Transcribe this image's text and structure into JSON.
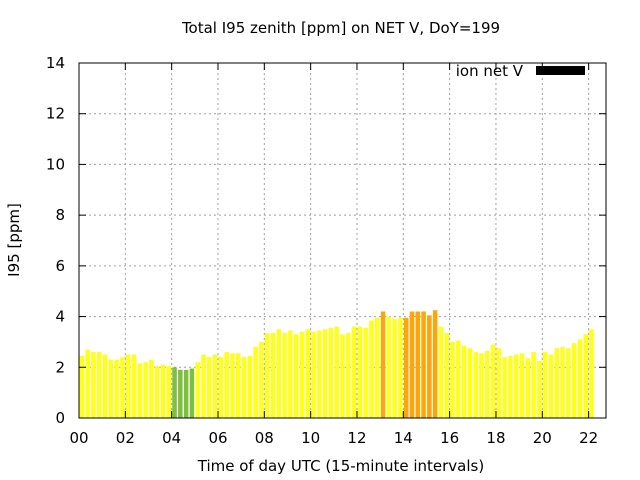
{
  "chart_data": {
    "type": "bar",
    "title": "Total I95 zenith [ppm] on NET V, DoY=199",
    "xlabel": "Time of day UTC (15-minute intervals)",
    "ylabel": "I95 [ppm]",
    "xlim": [
      0,
      22.75
    ],
    "ylim": [
      0,
      14
    ],
    "x_ticks": [
      "00",
      "02",
      "04",
      "06",
      "08",
      "10",
      "12",
      "14",
      "16",
      "18",
      "20",
      "22"
    ],
    "y_ticks": [
      "0",
      "2",
      "4",
      "6",
      "8",
      "10",
      "12",
      "14"
    ],
    "grid": true,
    "legend": {
      "label": "ion net V",
      "color": "#000000",
      "placement": "top-right"
    },
    "bar_interval_hours": 0.25,
    "colors": {
      "yellow": "#ffff1e",
      "green": "#7fbf3f",
      "orange": "#ffa50a"
    },
    "values": [
      2.45,
      2.7,
      2.6,
      2.6,
      2.5,
      2.3,
      2.3,
      2.4,
      2.5,
      2.5,
      2.15,
      2.2,
      2.3,
      2.05,
      2.1,
      2.05,
      2.0,
      1.9,
      1.9,
      1.95,
      2.2,
      2.5,
      2.4,
      2.5,
      2.4,
      2.6,
      2.55,
      2.55,
      2.4,
      2.45,
      2.8,
      3.0,
      3.35,
      3.35,
      3.5,
      3.35,
      3.45,
      3.3,
      3.4,
      3.5,
      3.4,
      3.45,
      3.5,
      3.55,
      3.6,
      3.3,
      3.35,
      3.6,
      3.6,
      3.55,
      3.85,
      3.95,
      4.2,
      4.0,
      3.9,
      3.95,
      3.95,
      4.2,
      4.2,
      4.2,
      4.05,
      4.25,
      3.6,
      3.35,
      3.0,
      3.05,
      2.85,
      2.75,
      2.6,
      2.55,
      2.65,
      2.9,
      2.75,
      2.4,
      2.45,
      2.5,
      2.55,
      2.35,
      2.6,
      2.25,
      2.6,
      2.5,
      2.75,
      2.8,
      2.75,
      2.95,
      3.1,
      3.3,
      3.5
    ],
    "bar_colors": [
      "yellow",
      "yellow",
      "yellow",
      "yellow",
      "yellow",
      "yellow",
      "yellow",
      "yellow",
      "yellow",
      "yellow",
      "yellow",
      "yellow",
      "yellow",
      "yellow",
      "yellow",
      "yellow",
      "green",
      "green",
      "green",
      "green",
      "yellow",
      "yellow",
      "yellow",
      "yellow",
      "yellow",
      "yellow",
      "yellow",
      "yellow",
      "yellow",
      "yellow",
      "yellow",
      "yellow",
      "yellow",
      "yellow",
      "yellow",
      "yellow",
      "yellow",
      "yellow",
      "yellow",
      "yellow",
      "yellow",
      "yellow",
      "yellow",
      "yellow",
      "yellow",
      "yellow",
      "yellow",
      "yellow",
      "yellow",
      "yellow",
      "yellow",
      "yellow",
      "orange",
      "yellow",
      "yellow",
      "yellow",
      "orange",
      "orange",
      "orange",
      "orange",
      "orange",
      "orange",
      "yellow",
      "yellow",
      "yellow",
      "yellow",
      "yellow",
      "yellow",
      "yellow",
      "yellow",
      "yellow",
      "yellow",
      "yellow",
      "yellow",
      "yellow",
      "yellow",
      "yellow",
      "yellow",
      "yellow",
      "yellow",
      "yellow",
      "yellow",
      "yellow",
      "yellow",
      "yellow",
      "yellow",
      "yellow",
      "yellow",
      "yellow"
    ]
  }
}
